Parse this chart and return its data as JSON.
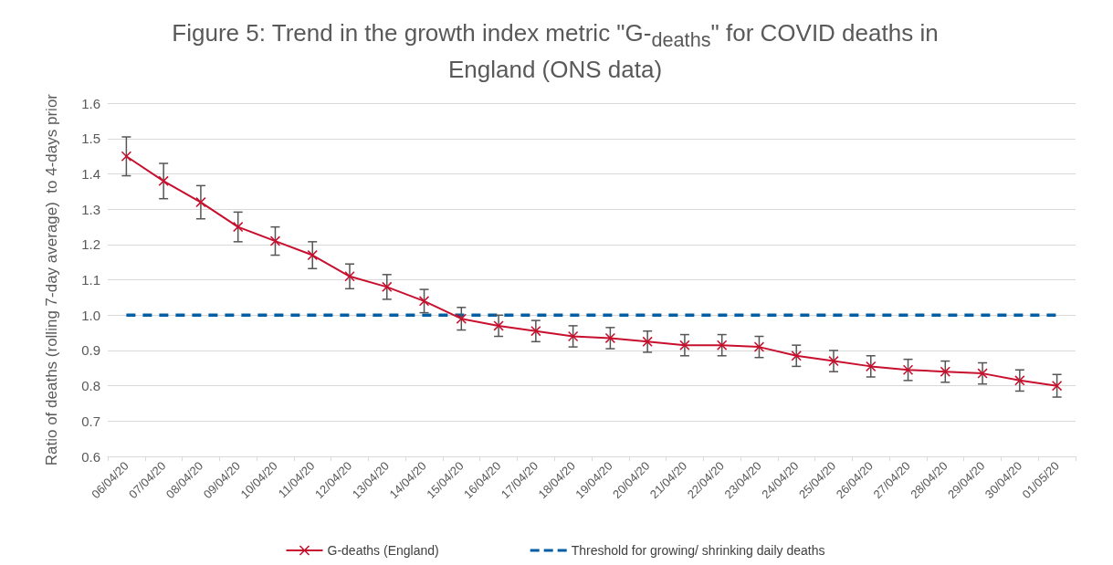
{
  "chart_data": {
    "type": "line",
    "title": "Figure 5: Trend in the growth index metric \"G-$_{deaths}$\" for COVID deaths in England (ONS data)",
    "ylabel": "Ratio of deaths (rolling 7-day average)  to 4-days prior",
    "categories": [
      "06/04/20",
      "07/04/20",
      "08/04/20",
      "09/04/20",
      "10/04/20",
      "11/04/20",
      "12/04/20",
      "13/04/20",
      "14/04/20",
      "15/04/20",
      "16/04/20",
      "17/04/20",
      "18/04/20",
      "19/04/20",
      "20/04/20",
      "21/04/20",
      "22/04/20",
      "23/04/20",
      "24/04/20",
      "25/04/20",
      "26/04/20",
      "27/04/20",
      "28/04/20",
      "29/04/20",
      "30/04/20",
      "01/05/20"
    ],
    "series": [
      {
        "name": "G-deaths (England)",
        "color": "#c8102e",
        "marker": "cross",
        "values": [
          1.45,
          1.38,
          1.32,
          1.25,
          1.21,
          1.17,
          1.11,
          1.08,
          1.04,
          0.99,
          0.97,
          0.955,
          0.94,
          0.935,
          0.925,
          0.915,
          0.915,
          0.91,
          0.885,
          0.87,
          0.855,
          0.845,
          0.84,
          0.835,
          0.815,
          0.8
        ],
        "errors": [
          0.055,
          0.05,
          0.047,
          0.042,
          0.04,
          0.038,
          0.035,
          0.035,
          0.033,
          0.032,
          0.03,
          0.03,
          0.03,
          0.03,
          0.03,
          0.03,
          0.03,
          0.03,
          0.03,
          0.03,
          0.03,
          0.03,
          0.03,
          0.03,
          0.03,
          0.032
        ]
      },
      {
        "name": "Threshold for growing/ shrinking daily deaths",
        "color": "#005ea5",
        "marker": "none",
        "line_style": "dashed",
        "values": [
          1,
          1,
          1,
          1,
          1,
          1,
          1,
          1,
          1,
          1,
          1,
          1,
          1,
          1,
          1,
          1,
          1,
          1,
          1,
          1,
          1,
          1,
          1,
          1,
          1,
          1
        ]
      }
    ],
    "ylim": [
      0.6,
      1.6
    ],
    "yticks": [
      0.6,
      0.7,
      0.8,
      0.9,
      {
        "value": 1,
        "label": "1.0"
      },
      1.1,
      1.2,
      1.3,
      1.4,
      1.5,
      1.6
    ],
    "grid": "y",
    "legend": "bottom"
  }
}
